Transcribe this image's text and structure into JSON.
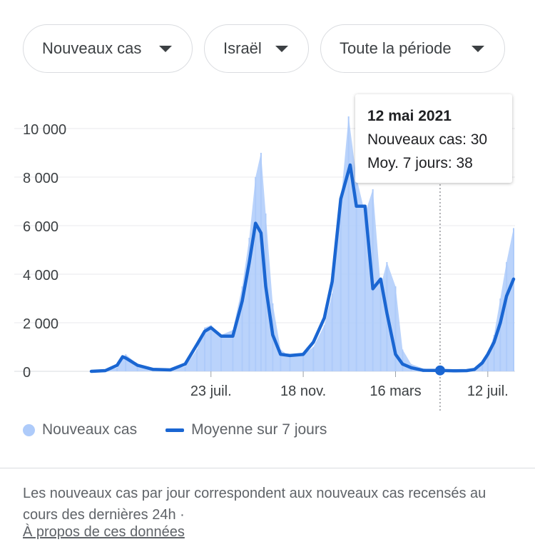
{
  "filters": {
    "metric": "Nouveaux cas",
    "country": "Israël",
    "period": "Toute la période"
  },
  "tooltip": {
    "date": "12 mai 2021",
    "cases_line": "Nouveaux cas: 30",
    "avg_line": "Moy. 7 jours: 38"
  },
  "legend": {
    "cases": "Nouveaux cas",
    "average": "Moyenne sur 7 jours"
  },
  "footnote": "Les nouveaux cas par jour correspondent aux nouveaux cas recensés au cours des dernières 24h ·",
  "about_link": "À propos de ces données",
  "colors": {
    "bars": "#aecbfa",
    "line": "#1a66d2",
    "grid": "#e8eaed",
    "axis_text": "#3c4043"
  },
  "chart_data": {
    "type": "area",
    "ylim": [
      0,
      11000
    ],
    "yticks": [
      0,
      2000,
      4000,
      6000,
      8000,
      10000
    ],
    "ytick_labels": [
      "0",
      "2 000",
      "4 000",
      "6 000",
      "8 000",
      "10 000"
    ],
    "xticks": [
      {
        "x": "2020-07-23",
        "label": "23 juil."
      },
      {
        "x": "2020-11-18",
        "label": "18 nov."
      },
      {
        "x": "2021-03-16",
        "label": "16 mars"
      },
      {
        "x": "2021-07-12",
        "label": "12 juil."
      }
    ],
    "xlim": [
      "2020-02-21",
      "2021-08-14"
    ],
    "highlight": {
      "x": "2021-05-12",
      "cases": 30,
      "avg": 38
    },
    "series": [
      {
        "name": "Nouveaux cas",
        "kind": "bars",
        "x": [
          "2020-02-21",
          "2020-03-10",
          "2020-03-25",
          "2020-04-05",
          "2020-04-20",
          "2020-05-10",
          "2020-06-01",
          "2020-06-20",
          "2020-07-05",
          "2020-07-15",
          "2020-07-23",
          "2020-08-05",
          "2020-08-20",
          "2020-09-01",
          "2020-09-10",
          "2020-09-18",
          "2020-09-25",
          "2020-10-01",
          "2020-10-10",
          "2020-10-20",
          "2020-11-01",
          "2020-11-18",
          "2020-12-01",
          "2020-12-15",
          "2020-12-25",
          "2021-01-05",
          "2021-01-15",
          "2021-01-25",
          "2021-02-05",
          "2021-02-15",
          "2021-02-25",
          "2021-03-05",
          "2021-03-16",
          "2021-03-25",
          "2021-04-05",
          "2021-04-20",
          "2021-05-12",
          "2021-06-01",
          "2021-06-15",
          "2021-06-25",
          "2021-07-05",
          "2021-07-12",
          "2021-07-20",
          "2021-07-28",
          "2021-08-05",
          "2021-08-14"
        ],
        "values": [
          0,
          20,
          150,
          700,
          300,
          100,
          60,
          200,
          900,
          1800,
          1900,
          1500,
          1700,
          3500,
          5500,
          8000,
          9000,
          6500,
          2800,
          900,
          600,
          700,
          1000,
          1900,
          3200,
          7000,
          10500,
          8000,
          6500,
          7500,
          3500,
          4500,
          3500,
          900,
          300,
          120,
          30,
          20,
          20,
          60,
          300,
          700,
          1500,
          3000,
          4500,
          5900
        ]
      },
      {
        "name": "Moyenne sur 7 jours",
        "kind": "line",
        "x": [
          "2020-02-21",
          "2020-03-10",
          "2020-03-25",
          "2020-04-01",
          "2020-04-05",
          "2020-04-20",
          "2020-05-10",
          "2020-06-01",
          "2020-06-20",
          "2020-07-05",
          "2020-07-15",
          "2020-07-23",
          "2020-08-05",
          "2020-08-20",
          "2020-09-01",
          "2020-09-10",
          "2020-09-18",
          "2020-09-25",
          "2020-10-01",
          "2020-10-10",
          "2020-10-20",
          "2020-11-01",
          "2020-11-18",
          "2020-12-01",
          "2020-12-15",
          "2020-12-25",
          "2021-01-05",
          "2021-01-17",
          "2021-01-25",
          "2021-02-05",
          "2021-02-15",
          "2021-02-25",
          "2021-03-05",
          "2021-03-16",
          "2021-03-25",
          "2021-04-05",
          "2021-04-20",
          "2021-05-12",
          "2021-06-01",
          "2021-06-15",
          "2021-06-25",
          "2021-07-05",
          "2021-07-12",
          "2021-07-20",
          "2021-07-28",
          "2021-08-05",
          "2021-08-14"
        ],
        "values": [
          0,
          30,
          250,
          600,
          550,
          250,
          80,
          60,
          300,
          1100,
          1650,
          1800,
          1450,
          1450,
          2900,
          4500,
          6100,
          5700,
          3500,
          1500,
          700,
          650,
          700,
          1200,
          2200,
          3700,
          7100,
          8500,
          6800,
          6800,
          3400,
          3800,
          2400,
          700,
          300,
          150,
          40,
          38,
          20,
          30,
          80,
          350,
          700,
          1200,
          2000,
          3100,
          3800
        ]
      }
    ]
  }
}
